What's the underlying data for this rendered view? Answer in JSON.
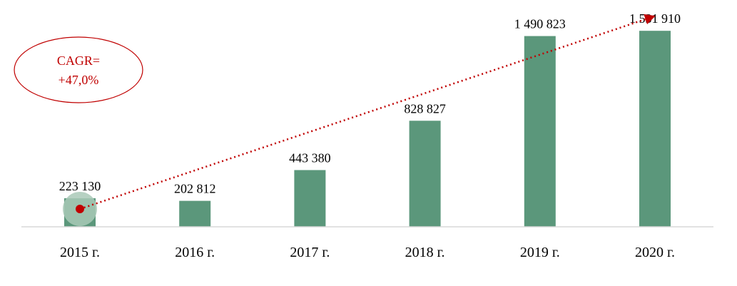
{
  "chart_data": {
    "type": "bar",
    "categories": [
      "2015 г.",
      "2016 г.",
      "2017 г.",
      "2018 г.",
      "2019 г.",
      "2020 г."
    ],
    "values": [
      223130,
      202812,
      443380,
      828827,
      1490823,
      1531910
    ],
    "value_labels": [
      "223 130",
      "202 812",
      "443 380",
      "828 827",
      "1 490 823",
      "1 531 910"
    ],
    "ylim": [
      0,
      1650000
    ],
    "grid": false,
    "legend": "none",
    "annotation": {
      "lines": [
        "CAGR=",
        "+47,0%"
      ],
      "trend_from": "2015 г.",
      "trend_to": "2020 г."
    },
    "colors": {
      "bar": "#5b977b",
      "trend": "#c00000",
      "highlight": "#a9c9b7",
      "axis": "#d9d9d9"
    }
  }
}
